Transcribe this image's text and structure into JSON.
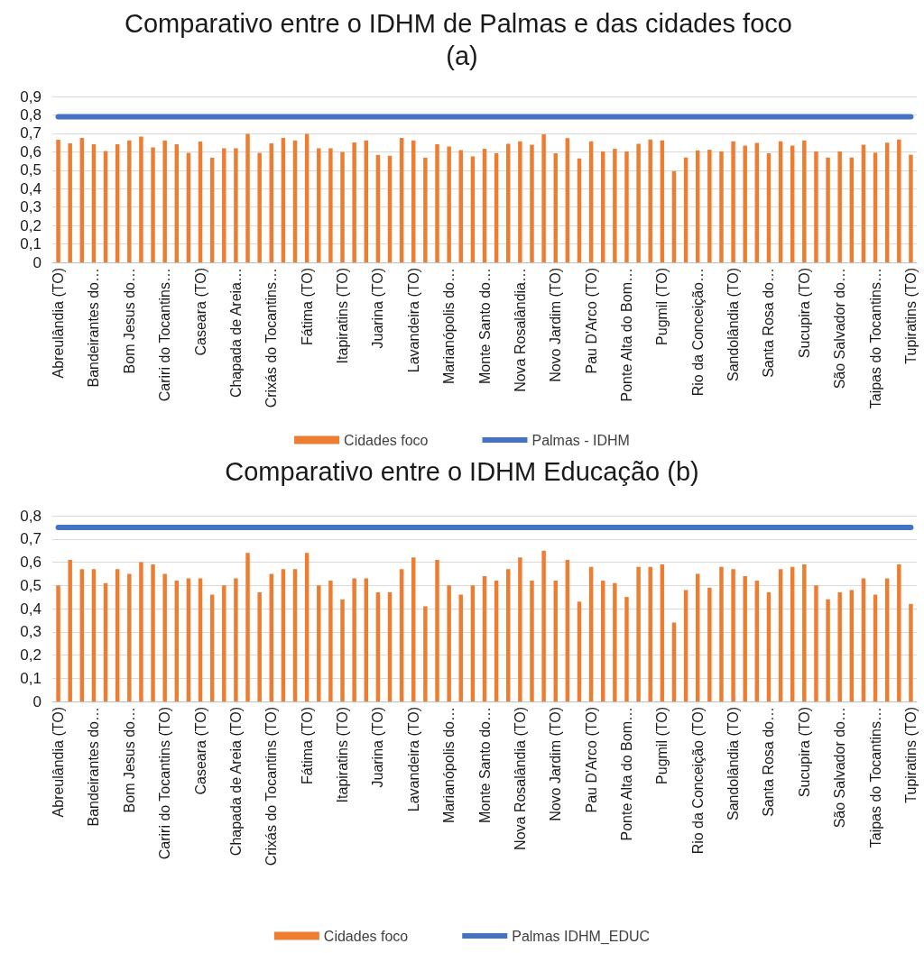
{
  "chart_data": [
    {
      "type": "bar",
      "title": "Comparativo entre o IDHM de Palmas e das cidades foco (a)",
      "categories": [
        "Abreulândia (TO)",
        null,
        null,
        "Bandeirantes do…",
        null,
        null,
        "Bom Jesus do…",
        null,
        null,
        "Cariri do Tocantins…",
        null,
        null,
        "Caseara (TO)",
        null,
        null,
        "Chapada de Areia…",
        null,
        null,
        "Crixás do Tocantins…",
        null,
        null,
        "Fátima (TO)",
        null,
        null,
        "Itapiratins (TO)",
        null,
        null,
        "Juarina (TO)",
        null,
        null,
        "Lavandeira (TO)",
        null,
        null,
        "Marianópolis do…",
        null,
        null,
        "Monte Santo do…",
        null,
        null,
        "Nova Rosalândia…",
        null,
        null,
        "Novo Jardim (TO)",
        null,
        null,
        "Pau D'Arco (TO)",
        null,
        null,
        "Ponte Alta do Bom…",
        null,
        null,
        "Pugmil (TO)",
        null,
        null,
        "Rio da Conceição…",
        null,
        null,
        "Sandolândia (TO)",
        null,
        null,
        "Santa Rosa do…",
        null,
        null,
        "Sucupira (TO)",
        null,
        null,
        "São Salvador do…",
        null,
        null,
        "Taipas do Tocantins…",
        null,
        null,
        "Tupiratins (TO)"
      ],
      "series": [
        {
          "name": "Cidades foco",
          "color": "#ed7d31",
          "values": [
            0.665,
            0.646,
            0.675,
            0.641,
            0.604,
            0.641,
            0.661,
            0.682,
            0.624,
            0.661,
            0.641,
            0.594,
            0.656,
            0.568,
            0.619,
            0.619,
            0.697,
            0.594,
            0.646,
            0.675,
            0.661,
            0.697,
            0.619,
            0.619,
            0.599,
            0.651,
            0.661,
            0.583,
            0.578,
            0.675,
            0.661,
            0.568,
            0.641,
            0.629,
            0.609,
            0.575,
            0.616,
            0.592,
            0.643,
            0.657,
            0.638,
            0.695,
            0.592,
            0.674,
            0.564,
            0.657,
            0.602,
            0.616,
            0.602,
            0.643,
            0.667,
            0.662,
            0.495,
            0.569,
            0.607,
            0.611,
            0.602,
            0.657,
            0.633,
            0.648,
            0.592,
            0.657,
            0.633,
            0.662,
            0.602,
            0.569,
            0.602,
            0.569,
            0.638,
            0.595,
            0.649,
            0.667,
            0.584
          ]
        },
        {
          "name": "Palmas - IDHM",
          "type": "line",
          "color": "#4472c4",
          "values": [
            0.79,
            0.79,
            0.79,
            0.79,
            0.79,
            0.79,
            0.79,
            0.79,
            0.79,
            0.79,
            0.79,
            0.79,
            0.79,
            0.79,
            0.79,
            0.79,
            0.79,
            0.79,
            0.79,
            0.79,
            0.79,
            0.79,
            0.79,
            0.79,
            0.79,
            0.79,
            0.79,
            0.79,
            0.79,
            0.79,
            0.79,
            0.79,
            0.79,
            0.79,
            0.79,
            0.79,
            0.79,
            0.79,
            0.79,
            0.79,
            0.79,
            0.79,
            0.79,
            0.79,
            0.79,
            0.79,
            0.79,
            0.79,
            0.79,
            0.79,
            0.79,
            0.79,
            0.79,
            0.79,
            0.79,
            0.79,
            0.79,
            0.79,
            0.79,
            0.79,
            0.79,
            0.79,
            0.79,
            0.79,
            0.79,
            0.79,
            0.79,
            0.79,
            0.79,
            0.79,
            0.79,
            0.79,
            0.79
          ]
        }
      ],
      "ylim": [
        0,
        0.9
      ],
      "yticks": [
        0,
        {
          "value": 0.1,
          "label": "0,1"
        },
        {
          "value": 0.2,
          "label": "0,2"
        },
        {
          "value": 0.3,
          "label": "0,3"
        },
        {
          "value": 0.4,
          "label": "0,4"
        },
        {
          "value": 0.5,
          "label": "0,5"
        },
        {
          "value": 0.6,
          "label": "0,6"
        },
        {
          "value": 0.7,
          "label": "0,7"
        },
        {
          "value": 0.8,
          "label": "0,8"
        },
        {
          "value": 0.9,
          "label": "0,9"
        }
      ],
      "grid": "y",
      "legend": "bottom",
      "marker": "none"
    },
    {
      "type": "bar",
      "title": "Comparativo entre o IDHM Educação (b)",
      "categories": [
        "Abreulândia (TO)",
        null,
        null,
        "Bandeirantes do…",
        null,
        null,
        "Bom Jesus do…",
        null,
        null,
        "Cariri do Tocantins (TO)",
        null,
        null,
        "Caseara (TO)",
        null,
        null,
        "Chapada de Areia (TO)",
        null,
        null,
        "Crixás do Tocantins (TO)",
        null,
        null,
        "Fátima (TO)",
        null,
        null,
        "Itapiratins (TO)",
        null,
        null,
        "Juarina (TO)",
        null,
        null,
        "Lavandeira (TO)",
        null,
        null,
        "Marianópolis do…",
        null,
        null,
        "Monte Santo do…",
        null,
        null,
        "Nova Rosalândia (TO)",
        null,
        null,
        "Novo Jardim (TO)",
        null,
        null,
        "Pau D'Arco (TO)",
        null,
        null,
        "Ponte Alta do Bom…",
        null,
        null,
        "Pugmil (TO)",
        null,
        null,
        "Rio da Conceição (TO)",
        null,
        null,
        "Sandolândia (TO)",
        null,
        null,
        "Santa Rosa do…",
        null,
        null,
        "Sucupira (TO)",
        null,
        null,
        "São Salvador do…",
        null,
        null,
        "Taipas do Tocantins…",
        null,
        null,
        "Tupiratins (TO)"
      ],
      "series": [
        {
          "name": "Cidades foco",
          "color": "#ed7d31",
          "values": [
            0.5,
            0.61,
            0.57,
            0.57,
            0.51,
            0.57,
            0.55,
            0.6,
            0.59,
            0.55,
            0.52,
            0.53,
            0.53,
            0.46,
            0.5,
            0.53,
            0.64,
            0.47,
            0.55,
            0.57,
            0.57,
            0.64,
            0.5,
            0.52,
            0.44,
            0.53,
            0.53,
            0.47,
            0.47,
            0.57,
            0.62,
            0.41,
            0.61,
            0.5,
            0.46,
            0.5,
            0.54,
            0.52,
            0.57,
            0.62,
            0.52,
            0.65,
            0.52,
            0.61,
            0.43,
            0.58,
            0.52,
            0.51,
            0.45,
            0.58,
            0.58,
            0.59,
            0.34,
            0.48,
            0.55,
            0.49,
            0.58,
            0.57,
            0.54,
            0.52,
            0.47,
            0.57,
            0.58,
            0.59,
            0.5,
            0.44,
            0.47,
            0.48,
            0.53,
            0.46,
            0.53,
            0.59,
            0.42
          ]
        },
        {
          "name": "Palmas IDHM_EDUC",
          "type": "line",
          "color": "#4472c4",
          "values": [
            0.75,
            0.75,
            0.75,
            0.75,
            0.75,
            0.75,
            0.75,
            0.75,
            0.75,
            0.75,
            0.75,
            0.75,
            0.75,
            0.75,
            0.75,
            0.75,
            0.75,
            0.75,
            0.75,
            0.75,
            0.75,
            0.75,
            0.75,
            0.75,
            0.75,
            0.75,
            0.75,
            0.75,
            0.75,
            0.75,
            0.75,
            0.75,
            0.75,
            0.75,
            0.75,
            0.75,
            0.75,
            0.75,
            0.75,
            0.75,
            0.75,
            0.75,
            0.75,
            0.75,
            0.75,
            0.75,
            0.75,
            0.75,
            0.75,
            0.75,
            0.75,
            0.75,
            0.75,
            0.75,
            0.75,
            0.75,
            0.75,
            0.75,
            0.75,
            0.75,
            0.75,
            0.75,
            0.75,
            0.75,
            0.75,
            0.75,
            0.75,
            0.75,
            0.75,
            0.75,
            0.75,
            0.75,
            0.75
          ]
        }
      ],
      "ylim": [
        0,
        0.8
      ],
      "yticks": [
        0,
        {
          "value": 0.1,
          "label": "0,1"
        },
        {
          "value": 0.2,
          "label": "0,2"
        },
        {
          "value": 0.3,
          "label": "0,3"
        },
        {
          "value": 0.4,
          "label": "0,4"
        },
        {
          "value": 0.5,
          "label": "0,5"
        },
        {
          "value": 0.6,
          "label": "0,6"
        },
        {
          "value": 0.7,
          "label": "0,7"
        },
        {
          "value": 0.8,
          "label": "0,8"
        }
      ],
      "grid": "y",
      "legend": "bottom",
      "marker": "none"
    }
  ]
}
